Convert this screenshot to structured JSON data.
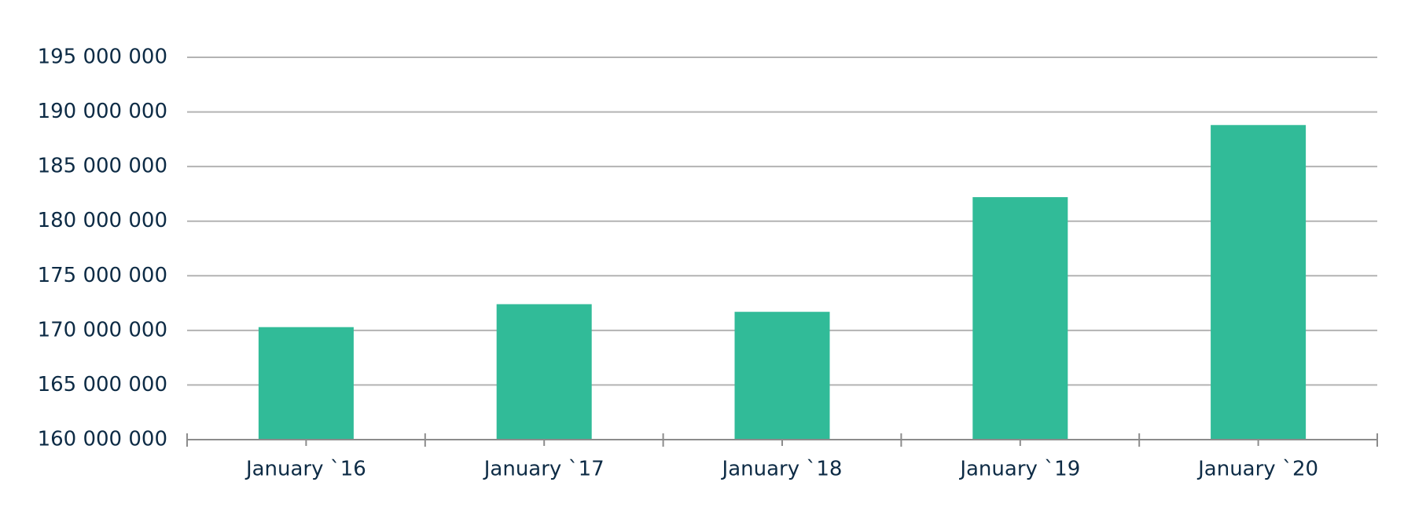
{
  "colors": {
    "bar": "#31bb98",
    "grid": "#b3b3b3",
    "axis": "#8c8c8c",
    "text": "#0d2b45"
  },
  "chart_data": {
    "type": "bar",
    "title": "",
    "xlabel": "",
    "ylabel": "",
    "categories": [
      "January `16",
      "January `17",
      "January `18",
      "January `19",
      "January `20"
    ],
    "values": [
      170300000,
      172400000,
      171700000,
      182200000,
      188800000
    ],
    "ylim": [
      160000000,
      195000000
    ],
    "y_ticks": [
      160000000,
      165000000,
      170000000,
      175000000,
      180000000,
      185000000,
      190000000,
      195000000
    ],
    "y_tick_labels": [
      "160 000 000",
      "165 000 000",
      "170 000 000",
      "175 000 000",
      "180 000 000",
      "185 000 000",
      "190 000 000",
      "195 000 000"
    ],
    "grid": true,
    "legend": "none"
  }
}
